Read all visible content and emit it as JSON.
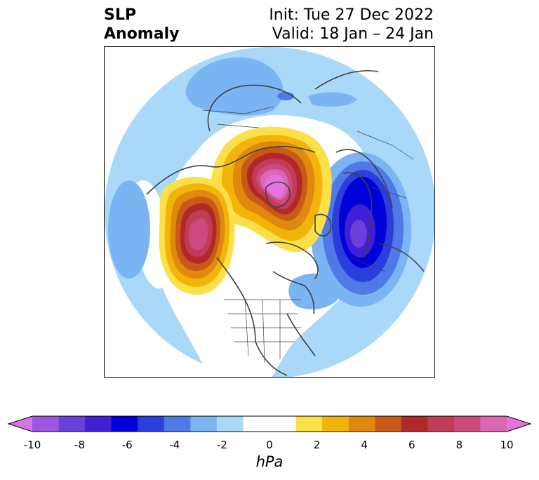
{
  "title": {
    "variable_line1": "SLP",
    "variable_line2": "Anomaly",
    "init": "Init: Tue 27 Dec 2022",
    "valid": "Valid: 18 Jan – 24 Jan"
  },
  "map": {
    "projection": "north polar stereographic",
    "field": "sea level pressure anomaly",
    "features": [
      {
        "name": "positive-anomaly-center",
        "region": "Greenland / Arctic",
        "peak_hPa": 10
      },
      {
        "name": "positive-anomaly-center",
        "region": "Gulf of Alaska / NE Pacific",
        "peak_hPa": 8
      },
      {
        "name": "negative-anomaly-center",
        "region": "Scandinavia / Europe",
        "peak_hPa": -8
      },
      {
        "name": "negative-anomaly-area",
        "region": "Siberia / East Asia",
        "peak_hPa": -4
      },
      {
        "name": "negative-anomaly-area",
        "region": "North Pacific west",
        "peak_hPa": -4
      },
      {
        "name": "negative-anomaly-area",
        "region": "North Atlantic",
        "peak_hPa": -4
      }
    ]
  },
  "colorbar": {
    "unit": "hPa",
    "tick_labels": [
      "-10",
      "-8",
      "-6",
      "-4",
      "-2",
      "0",
      "2",
      "4",
      "6",
      "8",
      "10"
    ],
    "colors": [
      "#d774e8",
      "#9c57e0",
      "#6b3fd9",
      "#3f20d4",
      "#0000d8",
      "#2a3edc",
      "#4f79e6",
      "#7ab4f2",
      "#aad8f8",
      "#ffffff",
      "#ffffff",
      "#fce04a",
      "#f2b408",
      "#df8a0e",
      "#c85a18",
      "#b02828",
      "#c03c58",
      "#cc4a7c",
      "#d868b4",
      "#e474dc"
    ],
    "extend": "both",
    "min": -10,
    "max": 10
  }
}
